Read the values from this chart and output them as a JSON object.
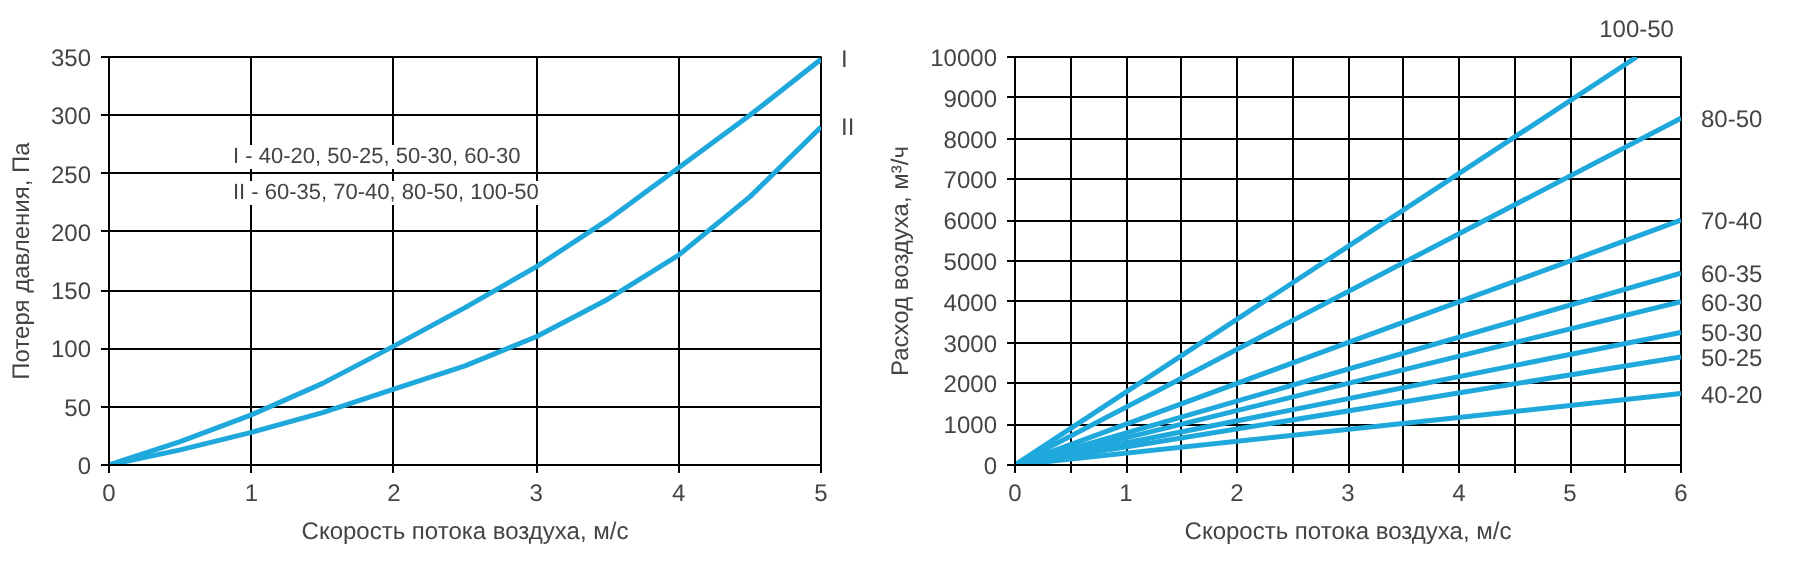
{
  "chart_data": [
    {
      "type": "line",
      "xlabel": "Скорость потока воздуха, м/с",
      "ylabel": "Потеря давления, Па",
      "xlim": [
        0,
        5
      ],
      "ylim": [
        0,
        350
      ],
      "xticks": [
        0,
        1,
        2,
        3,
        4,
        5
      ],
      "yticks": [
        0,
        50,
        100,
        150,
        200,
        250,
        300,
        350
      ],
      "grid": true,
      "x": [
        0,
        0.5,
        1,
        1.5,
        2,
        2.5,
        3,
        3.5,
        4,
        4.5,
        5
      ],
      "series": [
        {
          "name": "I",
          "color": "#1fa8dc",
          "values": [
            0,
            20,
            43,
            70,
            102,
            135,
            170,
            210,
            255,
            300,
            348
          ]
        },
        {
          "name": "II",
          "color": "#1fa8dc",
          "values": [
            0,
            13,
            28,
            45,
            65,
            85,
            110,
            142,
            180,
            230,
            290
          ]
        }
      ],
      "annotations": [
        "I - 40-20, 50-25, 50-30, 60-30",
        "II - 60-35, 70-40, 80-50, 100-50"
      ]
    },
    {
      "type": "line",
      "xlabel": "Скорость потока воздуха, м/с",
      "ylabel": "Расход воздуха, м³/ч",
      "xlim": [
        0,
        6
      ],
      "ylim": [
        0,
        10000
      ],
      "xticks": [
        0,
        {
          "value": 0.5,
          "label": null
        },
        1,
        {
          "value": 1.5,
          "label": null
        },
        2,
        {
          "value": 2.5,
          "label": null
        },
        3,
        {
          "value": 3.5,
          "label": null
        },
        4,
        {
          "value": 4.5,
          "label": null
        },
        5,
        {
          "value": 5.5,
          "label": null
        },
        6
      ],
      "yticks": [
        0,
        1000,
        2000,
        3000,
        4000,
        5000,
        6000,
        7000,
        8000,
        9000,
        10000
      ],
      "grid": true,
      "series": [
        {
          "name": "100-50",
          "color": "#1fa8dc",
          "x": [
            0,
            5.6
          ],
          "values": [
            0,
            10000
          ]
        },
        {
          "name": "80-50",
          "color": "#1fa8dc",
          "x": [
            0,
            6
          ],
          "values": [
            0,
            8500
          ]
        },
        {
          "name": "70-40",
          "color": "#1fa8dc",
          "x": [
            0,
            6
          ],
          "values": [
            0,
            6000
          ]
        },
        {
          "name": "60-35",
          "color": "#1fa8dc",
          "x": [
            0,
            6
          ],
          "values": [
            0,
            4700
          ]
        },
        {
          "name": "60-30",
          "color": "#1fa8dc",
          "x": [
            0,
            6
          ],
          "values": [
            0,
            4000
          ]
        },
        {
          "name": "50-30",
          "color": "#1fa8dc",
          "x": [
            0,
            6
          ],
          "values": [
            0,
            3250
          ]
        },
        {
          "name": "50-25",
          "color": "#1fa8dc",
          "x": [
            0,
            6
          ],
          "values": [
            0,
            2650
          ]
        },
        {
          "name": "40-20",
          "color": "#1fa8dc",
          "x": [
            0,
            6
          ],
          "values": [
            0,
            1750
          ]
        }
      ]
    }
  ]
}
